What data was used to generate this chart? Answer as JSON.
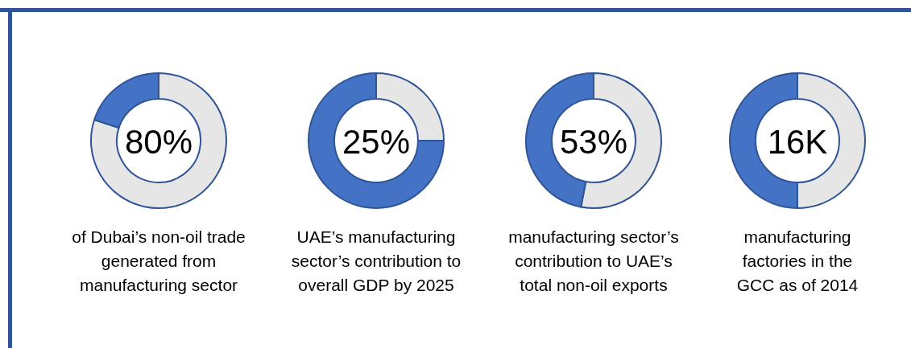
{
  "chart_data": [
    {
      "type": "donut",
      "categories": [
        null,
        null
      ],
      "values": [
        80,
        20
      ],
      "colors": [
        "#e7e6e6",
        "#4472c4"
      ],
      "annotations": [
        "80%",
        "of Dubai’s non-oil trade\ngenerated from\nmanufacturing sector"
      ]
    },
    {
      "type": "donut",
      "categories": [
        null,
        null
      ],
      "values": [
        25,
        75
      ],
      "colors": [
        "#e7e6e6",
        "#4472c4"
      ],
      "annotations": [
        "25%",
        "UAE’s manufacturing\nsector’s contribution to\noverall GDP by 2025"
      ]
    },
    {
      "type": "donut",
      "categories": [
        null,
        null
      ],
      "values": [
        53,
        47
      ],
      "colors": [
        "#e7e6e6",
        "#4472c4"
      ],
      "annotations": [
        "53%",
        "manufacturing sector’s\ncontribution to UAE’s\ntotal non-oil exports"
      ]
    },
    {
      "type": "donut",
      "categories": [
        null,
        null
      ],
      "values": [
        50,
        50
      ],
      "colors": [
        "#e7e6e6",
        "#4472c4"
      ],
      "annotations": [
        "16K",
        "manufacturing\nfactories in the\nGCC as of 2014"
      ]
    }
  ]
}
